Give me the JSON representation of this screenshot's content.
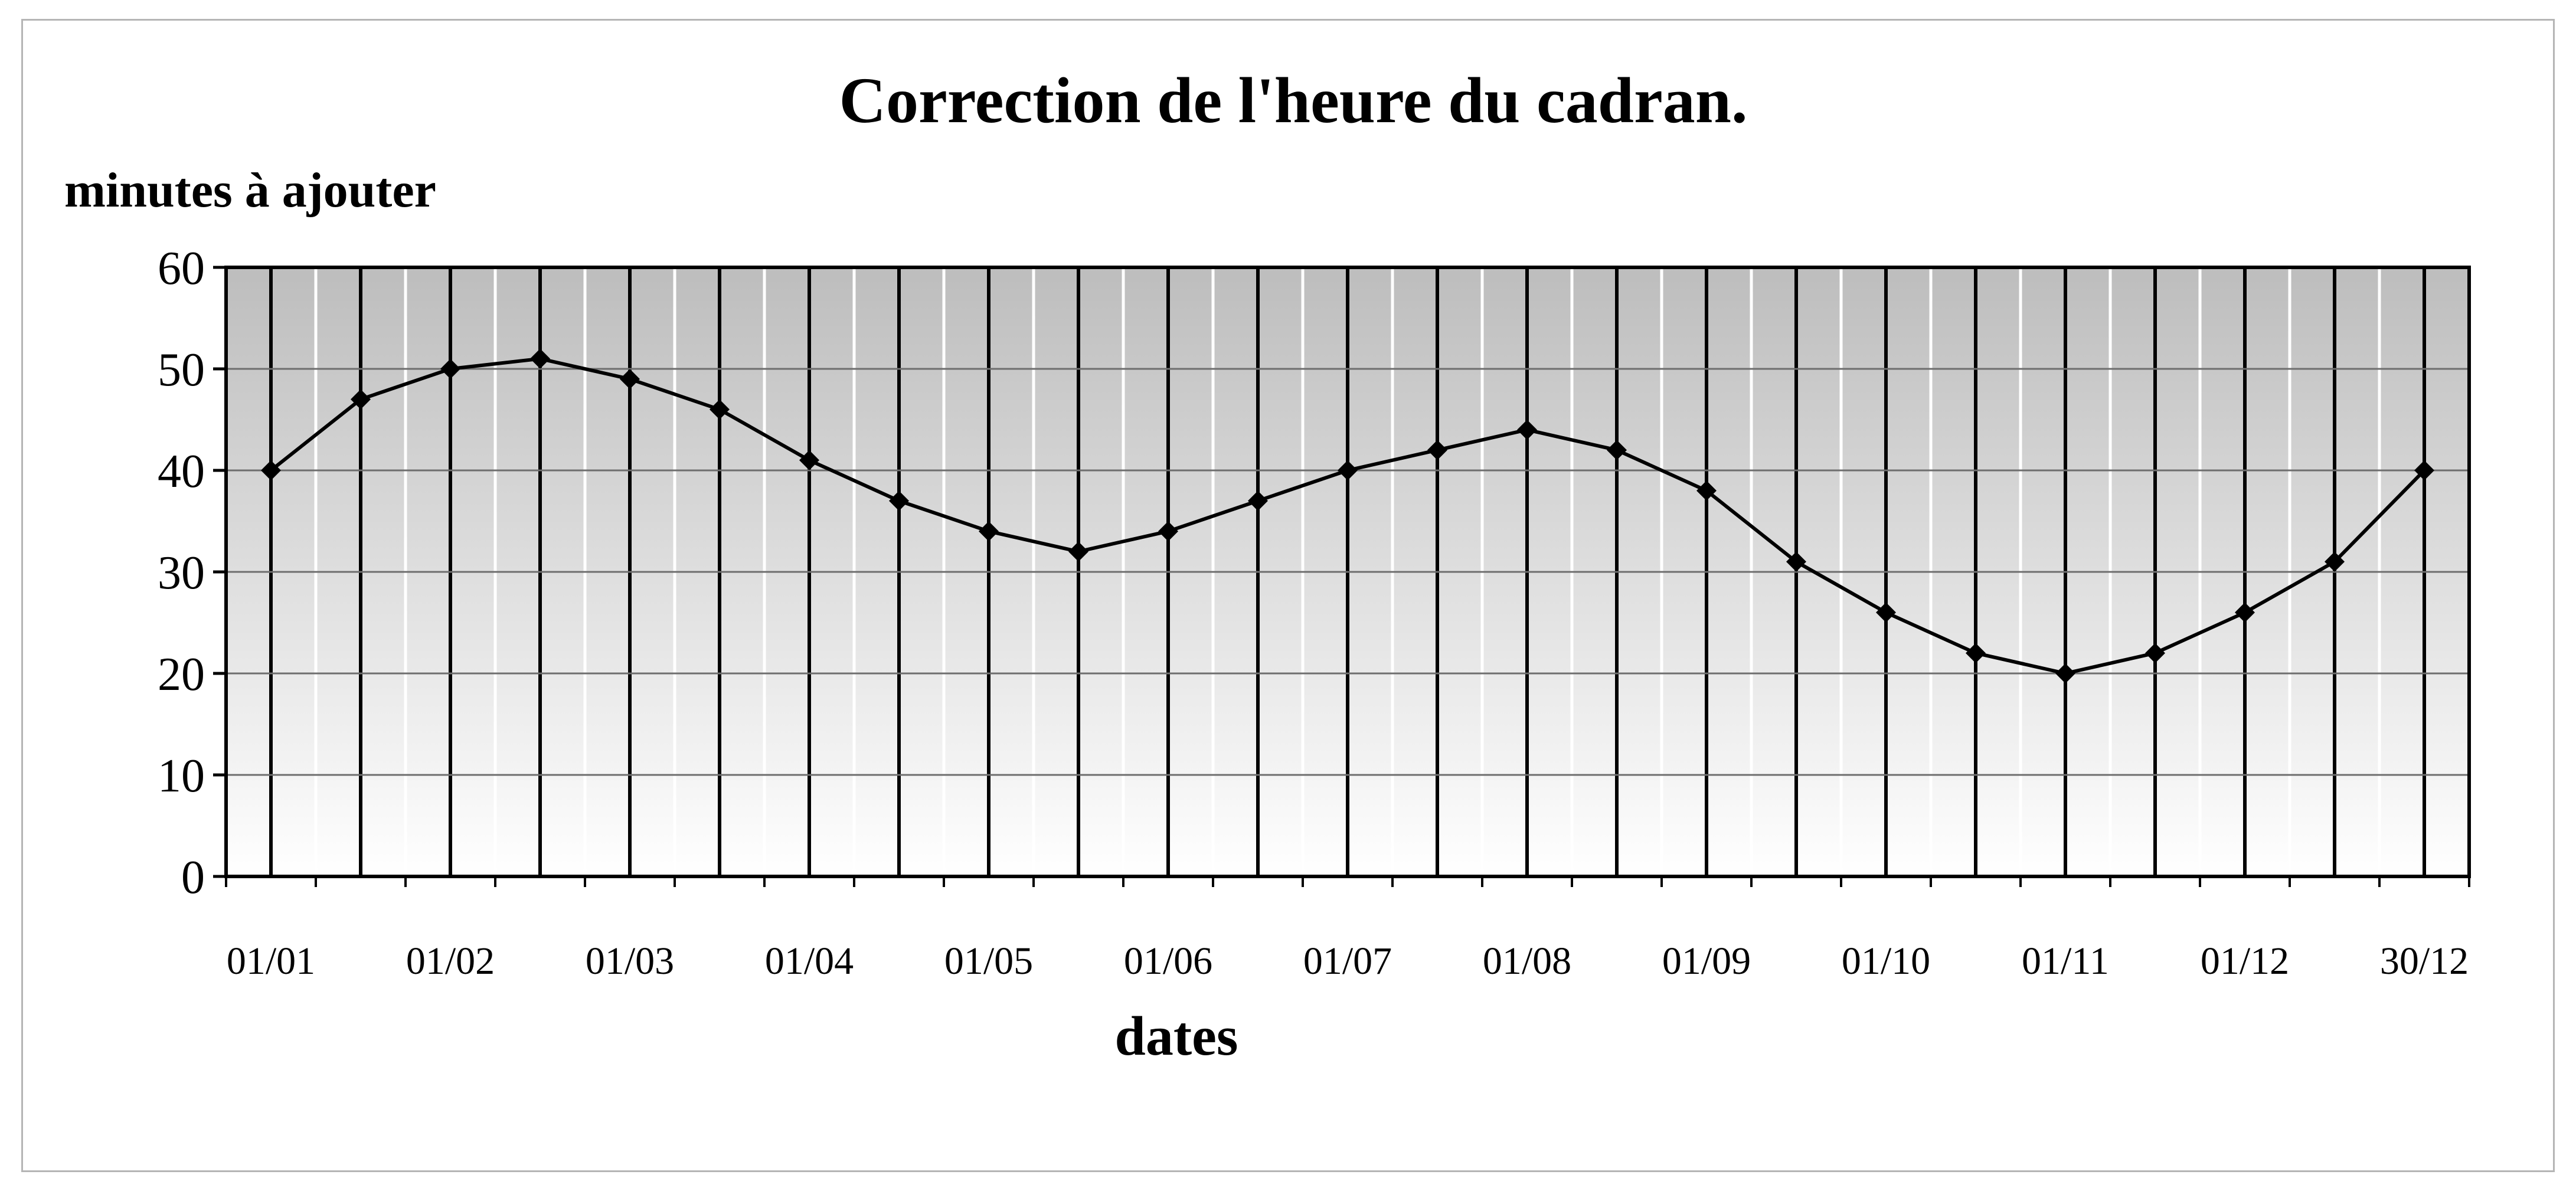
{
  "chart_data": {
    "type": "line",
    "title": "Correction de l'heure du cadran.",
    "ylabel": "minutes à ajouter",
    "xlabel": "dates",
    "ylim": [
      0,
      60
    ],
    "yticks": [
      "0",
      "10",
      "20",
      "30",
      "40",
      "50",
      "60"
    ],
    "grid": true,
    "legend": "none",
    "x_tick_labels": [
      "01/01",
      "01/02",
      "01/03",
      "01/04",
      "01/05",
      "01/06",
      "01/07",
      "01/08",
      "01/09",
      "01/10",
      "01/11",
      "01/12",
      "30/12"
    ],
    "x": [
      "01/01",
      "15/01",
      "01/02",
      "15/02",
      "01/03",
      "15/03",
      "01/04",
      "15/04",
      "01/05",
      "15/05",
      "01/06",
      "15/06",
      "01/07",
      "15/07",
      "01/08",
      "15/08",
      "01/09",
      "15/09",
      "01/10",
      "15/10",
      "01/11",
      "15/11",
      "01/12",
      "15/12",
      "30/12"
    ],
    "series": [
      {
        "values": [
          40,
          47,
          50,
          51,
          49,
          46,
          41,
          37,
          34,
          32,
          34,
          37,
          40,
          42,
          44,
          42,
          38,
          31,
          26,
          22,
          20,
          22,
          26,
          31,
          40
        ]
      }
    ],
    "colors": {
      "line": "#000000",
      "marker": "#000000",
      "plot_gradient_top": "#bdbdbd",
      "plot_gradient_bottom": "#ffffff",
      "grid_major": "#000000",
      "grid_minor": "#ffffff",
      "frame_border": "#b5b5b5"
    }
  }
}
